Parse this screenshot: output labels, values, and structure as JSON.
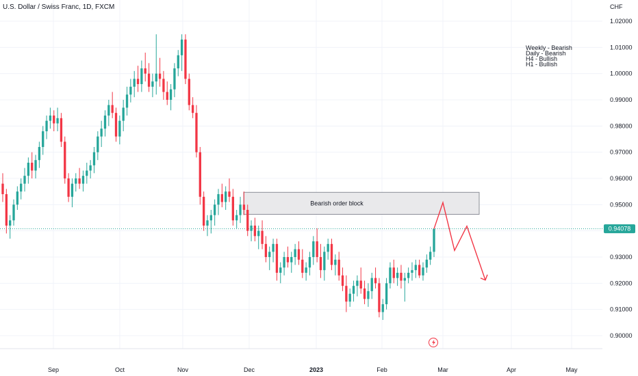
{
  "chart_data": {
    "type": "candlestick",
    "title": "U.S. Dollar / Swiss Franc, 1D, FXCM",
    "currency": "CHF",
    "last_price": "0.94078",
    "ylim": [
      0.8955,
      1.0235
    ],
    "y_ticks": [
      "1.02000",
      "1.01000",
      "1.00000",
      "0.99000",
      "0.98000",
      "0.97000",
      "0.96000",
      "0.95000",
      "0.94000",
      "0.93000",
      "0.92000",
      "0.91000",
      "0.90000"
    ],
    "x_ticks": [
      "Sep",
      "Oct",
      "Nov",
      "Dec",
      "2023",
      "Feb",
      "Mar",
      "Apr",
      "May"
    ],
    "order_block": {
      "label": "Bearish order block",
      "y_top": 0.9547,
      "y_bottom": 0.9463
    },
    "notes": [
      "Weekly - Bearish",
      "Daily - Bearish",
      "H4 - Bullish",
      "H1 - Bullish"
    ],
    "projection": [
      [
        0.9408,
        0.9508
      ],
      [
        0.9325,
        0.933
      ],
      [
        0.9418,
        0.9212
      ]
    ],
    "candles": [
      [
        0.958,
        0.962,
        0.951,
        0.954
      ],
      [
        0.954,
        0.956,
        0.939,
        0.942
      ],
      [
        0.942,
        0.946,
        0.937,
        0.944
      ],
      [
        0.944,
        0.952,
        0.942,
        0.95
      ],
      [
        0.95,
        0.957,
        0.948,
        0.955
      ],
      [
        0.955,
        0.96,
        0.952,
        0.958
      ],
      [
        0.958,
        0.964,
        0.955,
        0.961
      ],
      [
        0.961,
        0.968,
        0.958,
        0.966
      ],
      [
        0.966,
        0.97,
        0.96,
        0.963
      ],
      [
        0.963,
        0.969,
        0.96,
        0.967
      ],
      [
        0.967,
        0.974,
        0.964,
        0.972
      ],
      [
        0.972,
        0.98,
        0.969,
        0.978
      ],
      [
        0.978,
        0.984,
        0.975,
        0.982
      ],
      [
        0.982,
        0.987,
        0.979,
        0.984
      ],
      [
        0.984,
        0.986,
        0.978,
        0.981
      ],
      [
        0.981,
        0.987,
        0.978,
        0.983
      ],
      [
        0.983,
        0.985,
        0.972,
        0.974
      ],
      [
        0.974,
        0.976,
        0.958,
        0.96
      ],
      [
        0.96,
        0.962,
        0.951,
        0.953
      ],
      [
        0.953,
        0.96,
        0.949,
        0.958
      ],
      [
        0.958,
        0.962,
        0.955,
        0.96
      ],
      [
        0.96,
        0.964,
        0.956,
        0.958
      ],
      [
        0.958,
        0.963,
        0.955,
        0.961
      ],
      [
        0.961,
        0.966,
        0.958,
        0.963
      ],
      [
        0.963,
        0.967,
        0.96,
        0.965
      ],
      [
        0.965,
        0.972,
        0.962,
        0.97
      ],
      [
        0.97,
        0.978,
        0.967,
        0.976
      ],
      [
        0.976,
        0.982,
        0.972,
        0.979
      ],
      [
        0.979,
        0.986,
        0.976,
        0.984
      ],
      [
        0.984,
        0.99,
        0.98,
        0.988
      ],
      [
        0.988,
        0.993,
        0.983,
        0.985
      ],
      [
        0.985,
        0.987,
        0.974,
        0.976
      ],
      [
        0.976,
        0.984,
        0.973,
        0.982
      ],
      [
        0.982,
        0.99,
        0.978,
        0.987
      ],
      [
        0.987,
        0.995,
        0.984,
        0.992
      ],
      [
        0.992,
        0.998,
        0.989,
        0.995
      ],
      [
        0.995,
        1.001,
        0.991,
        0.998
      ],
      [
        0.998,
        1.003,
        0.993,
        0.996
      ],
      [
        0.996,
        1.005,
        0.993,
        1.002
      ],
      [
        1.002,
        1.008,
        0.997,
        1.0
      ],
      [
        1.0,
        1.004,
        0.993,
        0.995
      ],
      [
        0.995,
        1.0,
        0.991,
        0.997
      ],
      [
        0.997,
        1.015,
        0.992,
        1.0
      ],
      [
        1.0,
        1.006,
        0.995,
        0.998
      ],
      [
        0.998,
        1.001,
        0.99,
        0.993
      ],
      [
        0.993,
        0.997,
        0.988,
        0.99
      ],
      [
        0.99,
        0.996,
        0.986,
        0.994
      ],
      [
        0.994,
        1.004,
        0.991,
        1.002
      ],
      [
        1.002,
        1.009,
        0.999,
        1.007
      ],
      [
        1.007,
        1.015,
        1.001,
        1.013
      ],
      [
        1.013,
        1.015,
        0.996,
        0.998
      ],
      [
        0.998,
        1.0,
        0.986,
        0.988
      ],
      [
        0.988,
        0.991,
        0.983,
        0.985
      ],
      [
        0.985,
        0.988,
        0.968,
        0.97
      ],
      [
        0.97,
        0.972,
        0.95,
        0.953
      ],
      [
        0.953,
        0.955,
        0.94,
        0.942
      ],
      [
        0.942,
        0.946,
        0.938,
        0.944
      ],
      [
        0.944,
        0.948,
        0.939,
        0.946
      ],
      [
        0.946,
        0.952,
        0.942,
        0.95
      ],
      [
        0.95,
        0.956,
        0.946,
        0.954
      ],
      [
        0.954,
        0.958,
        0.949,
        0.951
      ],
      [
        0.951,
        0.957,
        0.948,
        0.955
      ],
      [
        0.955,
        0.96,
        0.951,
        0.953
      ],
      [
        0.953,
        0.956,
        0.942,
        0.944
      ],
      [
        0.944,
        0.948,
        0.941,
        0.946
      ],
      [
        0.946,
        0.953,
        0.943,
        0.95
      ],
      [
        0.95,
        0.955,
        0.946,
        0.948
      ],
      [
        0.948,
        0.95,
        0.938,
        0.94
      ],
      [
        0.94,
        0.944,
        0.936,
        0.942
      ],
      [
        0.942,
        0.945,
        0.936,
        0.938
      ],
      [
        0.938,
        0.942,
        0.933,
        0.94
      ],
      [
        0.94,
        0.944,
        0.933,
        0.935
      ],
      [
        0.935,
        0.938,
        0.928,
        0.93
      ],
      [
        0.93,
        0.934,
        0.925,
        0.932
      ],
      [
        0.932,
        0.937,
        0.928,
        0.935
      ],
      [
        0.935,
        0.937,
        0.921,
        0.924
      ],
      [
        0.924,
        0.928,
        0.92,
        0.926
      ],
      [
        0.926,
        0.932,
        0.923,
        0.93
      ],
      [
        0.93,
        0.934,
        0.926,
        0.928
      ],
      [
        0.928,
        0.932,
        0.924,
        0.93
      ],
      [
        0.93,
        0.935,
        0.927,
        0.933
      ],
      [
        0.933,
        0.936,
        0.927,
        0.929
      ],
      [
        0.929,
        0.933,
        0.922,
        0.924
      ],
      [
        0.924,
        0.928,
        0.921,
        0.926
      ],
      [
        0.926,
        0.932,
        0.923,
        0.93
      ],
      [
        0.93,
        0.938,
        0.927,
        0.936
      ],
      [
        0.936,
        0.941,
        0.928,
        0.93
      ],
      [
        0.93,
        0.935,
        0.922,
        0.925
      ],
      [
        0.925,
        0.934,
        0.921,
        0.932
      ],
      [
        0.932,
        0.937,
        0.929,
        0.935
      ],
      [
        0.935,
        0.937,
        0.925,
        0.927
      ],
      [
        0.927,
        0.931,
        0.923,
        0.929
      ],
      [
        0.929,
        0.932,
        0.921,
        0.923
      ],
      [
        0.923,
        0.926,
        0.917,
        0.919
      ],
      [
        0.919,
        0.923,
        0.909,
        0.913
      ],
      [
        0.913,
        0.918,
        0.911,
        0.916
      ],
      [
        0.916,
        0.921,
        0.913,
        0.919
      ],
      [
        0.919,
        0.923,
        0.915,
        0.921
      ],
      [
        0.921,
        0.926,
        0.916,
        0.918
      ],
      [
        0.918,
        0.921,
        0.912,
        0.914
      ],
      [
        0.914,
        0.92,
        0.911,
        0.917
      ],
      [
        0.917,
        0.924,
        0.914,
        0.922
      ],
      [
        0.922,
        0.926,
        0.918,
        0.92
      ],
      [
        0.92,
        0.922,
        0.907,
        0.909
      ],
      [
        0.909,
        0.914,
        0.906,
        0.912
      ],
      [
        0.912,
        0.922,
        0.91,
        0.92
      ],
      [
        0.92,
        0.928,
        0.918,
        0.926
      ],
      [
        0.926,
        0.929,
        0.92,
        0.922
      ],
      [
        0.922,
        0.926,
        0.919,
        0.924
      ],
      [
        0.924,
        0.927,
        0.918,
        0.921
      ],
      [
        0.921,
        0.924,
        0.913,
        0.922
      ],
      [
        0.922,
        0.926,
        0.92,
        0.924
      ],
      [
        0.924,
        0.928,
        0.921,
        0.925
      ],
      [
        0.925,
        0.929,
        0.922,
        0.927
      ],
      [
        0.927,
        0.929,
        0.922,
        0.923
      ],
      [
        0.923,
        0.928,
        0.921,
        0.926
      ],
      [
        0.926,
        0.931,
        0.924,
        0.929
      ],
      [
        0.929,
        0.934,
        0.927,
        0.932
      ],
      [
        0.932,
        0.941,
        0.93,
        0.9408
      ]
    ]
  }
}
